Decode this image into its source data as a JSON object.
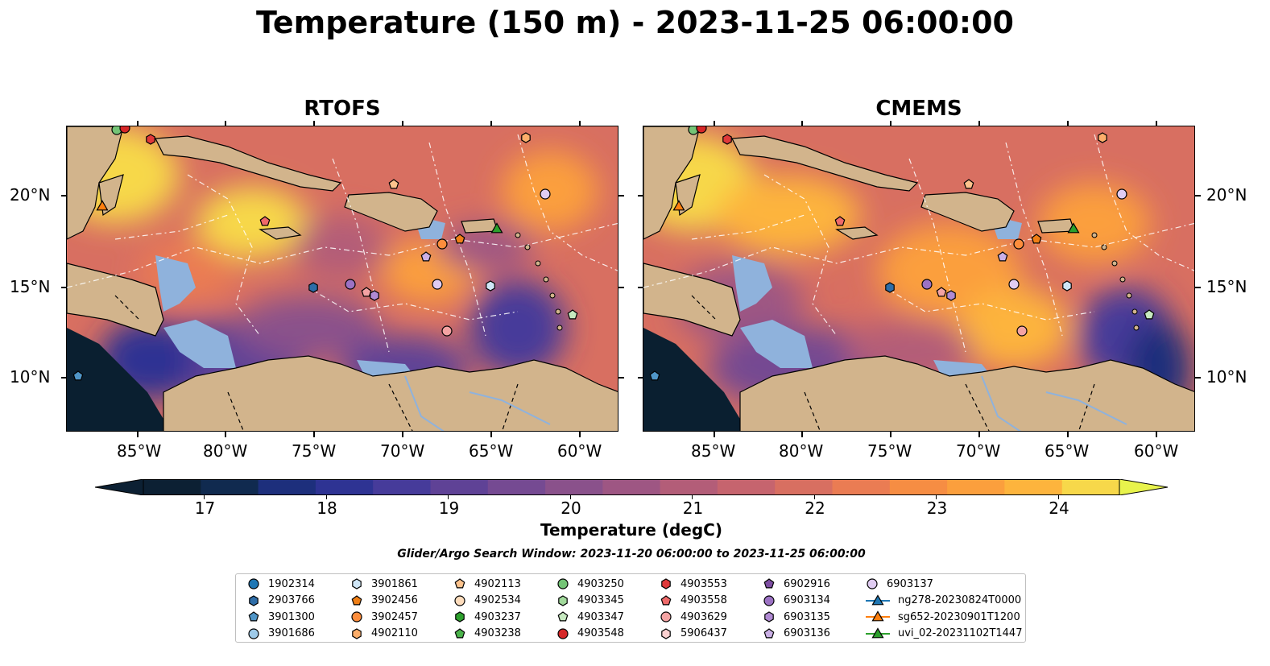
{
  "title": "Temperature (150 m) - 2023-11-25 06:00:00",
  "panels": [
    {
      "title": "RTOFS"
    },
    {
      "title": "CMEMS"
    }
  ],
  "lon_labels": [
    "85°W",
    "80°W",
    "75°W",
    "70°W",
    "65°W",
    "60°W"
  ],
  "lat_labels": [
    "20°N",
    "15°N",
    "10°N"
  ],
  "colorbar": {
    "label": "Temperature (degC)",
    "ticks": [
      "17",
      "18",
      "19",
      "20",
      "21",
      "22",
      "23",
      "24"
    ],
    "min": 16.5,
    "max": 24.5,
    "step": 0.5,
    "colors": [
      "#0c2033",
      "#102a4f",
      "#1d2f7c",
      "#2e3393",
      "#463b9a",
      "#5f4296",
      "#754a92",
      "#8a518b",
      "#9e5683",
      "#b35d78",
      "#c6646e",
      "#d86f61",
      "#ea7c53",
      "#f68d43",
      "#fb9f3d",
      "#fdb43d",
      "#f7d84a"
    ],
    "under_color": "#0c2033",
    "over_color": "#e8f34c"
  },
  "search_window": "Glider/Argo Search Window: 2023-11-20 06:00:00 to 2023-11-25 06:00:00",
  "legend": [
    {
      "label": "1902314",
      "marker": "circle",
      "color": "#1f77b4"
    },
    {
      "label": "2903766",
      "marker": "hexagon",
      "color": "#2e6da8"
    },
    {
      "label": "3901300",
      "marker": "pentagon",
      "color": "#4f95c7"
    },
    {
      "label": "3901686",
      "marker": "circle",
      "color": "#9ecae9"
    },
    {
      "label": "3901861",
      "marker": "hexagon",
      "color": "#cfe6f7"
    },
    {
      "label": "3902456",
      "marker": "pentagon",
      "color": "#f07f16"
    },
    {
      "label": "3902457",
      "marker": "circle",
      "color": "#fd8d3c"
    },
    {
      "label": "4902110",
      "marker": "hexagon",
      "color": "#fdae6b"
    },
    {
      "label": "4902113",
      "marker": "pentagon",
      "color": "#fdc38d"
    },
    {
      "label": "4902534",
      "marker": "circle",
      "color": "#fddcbc"
    },
    {
      "label": "4903237",
      "marker": "hexagon",
      "color": "#2ca02c"
    },
    {
      "label": "4903238",
      "marker": "pentagon",
      "color": "#4bb34b"
    },
    {
      "label": "4903250",
      "marker": "circle",
      "color": "#74c476"
    },
    {
      "label": "4903345",
      "marker": "hexagon",
      "color": "#a1d99b"
    },
    {
      "label": "4903347",
      "marker": "pentagon",
      "color": "#c7e9c0"
    },
    {
      "label": "4903548",
      "marker": "circle",
      "color": "#d62728"
    },
    {
      "label": "4903553",
      "marker": "hexagon",
      "color": "#e0393a"
    },
    {
      "label": "4903558",
      "marker": "pentagon",
      "color": "#ef6a6a"
    },
    {
      "label": "4903629",
      "marker": "circle",
      "color": "#f4a3a3"
    },
    {
      "label": "5906437",
      "marker": "hexagon",
      "color": "#fbd0d0"
    },
    {
      "label": "6902916",
      "marker": "pentagon",
      "color": "#7e4ea3"
    },
    {
      "label": "6903134",
      "marker": "circle",
      "color": "#9c72c4"
    },
    {
      "label": "6903135",
      "marker": "hexagon",
      "color": "#b08ad3"
    },
    {
      "label": "6903136",
      "marker": "pentagon",
      "color": "#cbb0e6"
    },
    {
      "label": "6903137",
      "marker": "circle",
      "color": "#e0ccf2"
    },
    {
      "label": "ng278-20230824T0000",
      "marker": "triangle-line",
      "color": "#1f77b4"
    },
    {
      "label": "sg652-20230901T1200",
      "marker": "triangle-line",
      "color": "#ff7f0e"
    },
    {
      "label": "uvi_02-20231102T1447",
      "marker": "triangle-line",
      "color": "#2ca02c"
    }
  ]
}
